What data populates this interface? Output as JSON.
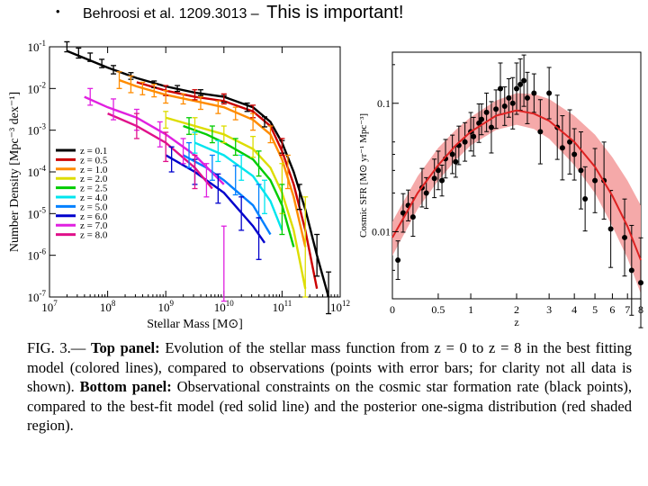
{
  "slide": {
    "bullet": "•",
    "title_ref": "Behroosi et al. 1209.3013 –",
    "title_emphasis": "This is important!"
  },
  "caption": {
    "fig": "FIG. 3.—",
    "top_label": "Top panel:",
    "top_text": " Evolution of the stellar mass function from z = 0 to z = 8 in the best fitting model (colored lines), compared to observations (points with error bars; for clarity not all data is shown). ",
    "bottom_label": "Bottom panel:",
    "bottom_text": " Observational constraints on the cosmic star formation rate (black points), compared to the best-fit model (red solid line) and the posterior one-sigma distribution (red shaded region)."
  },
  "chart_data": [
    {
      "type": "line",
      "title": "",
      "xlabel": "Stellar Mass [M⊙]",
      "ylabel": "Number Density [Mpc⁻³ dex⁻¹]",
      "x_scale": "log",
      "y_scale": "log",
      "xlim": [
        10000000.0,
        1000000000000.0
      ],
      "ylim": [
        1e-07,
        0.1
      ],
      "xticks": [
        {
          "v": 7,
          "label": "10",
          "exp": "7"
        },
        {
          "v": 8,
          "label": "10",
          "exp": "8"
        },
        {
          "v": 9,
          "label": "10",
          "exp": "9"
        },
        {
          "v": 10,
          "label": "10",
          "exp": "10"
        },
        {
          "v": 11,
          "label": "10",
          "exp": "11"
        },
        {
          "v": 12,
          "label": "10",
          "exp": "12"
        }
      ],
      "yticks": [
        {
          "v": -1,
          "label": "10",
          "exp": "-1"
        },
        {
          "v": -2,
          "label": "10",
          "exp": "-2"
        },
        {
          "v": -3,
          "label": "10",
          "exp": "-3"
        },
        {
          "v": -4,
          "label": "10",
          "exp": "-4"
        },
        {
          "v": -5,
          "label": "10",
          "exp": "-5"
        },
        {
          "v": -6,
          "label": "10",
          "exp": "-6"
        },
        {
          "v": -7,
          "label": "10",
          "exp": "-7"
        }
      ],
      "legend_position": "bottom-left",
      "series": [
        {
          "name": "z = 0.1",
          "color": "#000000",
          "x": [
            7.3,
            8.0,
            8.5,
            9.0,
            9.5,
            10.0,
            10.5,
            10.8,
            11.0,
            11.2,
            11.4,
            11.6,
            11.8
          ],
          "y": [
            -1.1,
            -1.5,
            -1.75,
            -1.95,
            -2.1,
            -2.2,
            -2.45,
            -2.8,
            -3.3,
            -4.0,
            -4.9,
            -6.0,
            -7.0
          ]
        },
        {
          "name": "z = 0.5",
          "color": "#cc0000",
          "x": [
            8.5,
            9.0,
            9.5,
            10.0,
            10.5,
            10.8,
            11.0,
            11.2,
            11.4,
            11.6
          ],
          "y": [
            -1.85,
            -2.05,
            -2.2,
            -2.3,
            -2.55,
            -2.9,
            -3.5,
            -4.3,
            -5.4,
            -6.8
          ]
        },
        {
          "name": "z = 1.0",
          "color": "#ff8c00",
          "x": [
            8.2,
            8.5,
            9.0,
            9.5,
            10.0,
            10.5,
            10.8,
            11.0,
            11.2,
            11.4
          ],
          "y": [
            -1.8,
            -1.95,
            -2.15,
            -2.3,
            -2.45,
            -2.75,
            -3.1,
            -3.7,
            -4.6,
            -5.8
          ]
        },
        {
          "name": "z = 2.0",
          "color": "#dddd00",
          "x": [
            9.0,
            9.5,
            10.0,
            10.5,
            10.8,
            11.0,
            11.2,
            11.4
          ],
          "y": [
            -2.7,
            -2.9,
            -3.1,
            -3.45,
            -3.9,
            -4.5,
            -5.4,
            -6.8
          ]
        },
        {
          "name": "z = 2.5",
          "color": "#00cc00",
          "x": [
            9.3,
            9.7,
            10.0,
            10.5,
            10.8,
            11.0,
            11.2
          ],
          "y": [
            -2.9,
            -3.1,
            -3.3,
            -3.7,
            -4.2,
            -4.8,
            -5.8
          ]
        },
        {
          "name": "z = 4.0",
          "color": "#00e5ee",
          "x": [
            9.5,
            10.0,
            10.5,
            10.8,
            11.0
          ],
          "y": [
            -3.3,
            -3.6,
            -4.1,
            -4.7,
            -5.4
          ]
        },
        {
          "name": "z = 5.0",
          "color": "#0080ff",
          "x": [
            9.3,
            9.7,
            10.0,
            10.5,
            10.8
          ],
          "y": [
            -3.6,
            -3.9,
            -4.2,
            -4.8,
            -5.5
          ]
        },
        {
          "name": "z = 6.0",
          "color": "#0000cc",
          "x": [
            9.0,
            9.5,
            10.0,
            10.5,
            10.7
          ],
          "y": [
            -3.6,
            -4.0,
            -4.5,
            -5.3,
            -5.7
          ]
        },
        {
          "name": "z = 7.0",
          "color": "#e020e0",
          "x": [
            7.6,
            8.0,
            8.5,
            9.0,
            9.5,
            10.0
          ],
          "y": [
            -2.2,
            -2.45,
            -2.7,
            -3.1,
            -3.6,
            -4.3
          ]
        },
        {
          "name": "z = 8.0",
          "color": "#e0108a",
          "x": [
            8.0,
            8.5,
            9.0,
            9.5,
            9.8
          ],
          "y": [
            -2.6,
            -2.9,
            -3.3,
            -3.9,
            -4.4
          ]
        }
      ],
      "observations": [
        {
          "color": "#000000",
          "x": [
            7.3,
            7.5,
            7.7,
            7.9,
            8.1,
            8.4,
            8.8,
            9.2,
            9.6,
            10.0,
            10.4,
            10.7,
            11.0,
            11.3,
            11.6,
            11.8
          ],
          "y": [
            -1.0,
            -1.15,
            -1.25,
            -1.4,
            -1.55,
            -1.7,
            -1.9,
            -2.0,
            -2.1,
            -2.25,
            -2.45,
            -2.8,
            -3.4,
            -4.6,
            -6.0,
            -6.9
          ],
          "err": [
            0.12,
            0.12,
            0.1,
            0.1,
            0.1,
            0.08,
            0.08,
            0.07,
            0.07,
            0.08,
            0.1,
            0.12,
            0.15,
            0.3,
            0.5,
            0.5
          ]
        },
        {
          "color": "#cc0000",
          "x": [
            9.0,
            9.5,
            10.0,
            10.5,
            11.0
          ],
          "y": [
            -2.05,
            -2.15,
            -2.25,
            -2.55,
            -3.4
          ],
          "err": [
            0.12,
            0.12,
            0.12,
            0.15,
            0.2
          ]
        },
        {
          "color": "#ff8c00",
          "x": [
            8.2,
            8.4,
            8.6,
            8.8,
            9.0,
            9.3,
            9.6,
            9.9,
            10.2,
            10.5,
            10.8,
            11.1
          ],
          "y": [
            -1.8,
            -1.9,
            -2.0,
            -2.05,
            -2.2,
            -2.25,
            -2.35,
            -2.45,
            -2.6,
            -2.8,
            -3.1,
            -4.0
          ],
          "err": [
            0.2,
            0.2,
            0.15,
            0.15,
            0.15,
            0.12,
            0.15,
            0.15,
            0.15,
            0.2,
            0.2,
            0.4
          ]
        },
        {
          "color": "#dddd00",
          "x": [
            9.0,
            9.5,
            10.0,
            10.5,
            11.0,
            11.4
          ],
          "y": [
            -2.75,
            -2.9,
            -3.1,
            -3.4,
            -4.4,
            -5.8
          ],
          "err": [
            0.2,
            0.2,
            0.2,
            0.25,
            0.6,
            1.2
          ]
        },
        {
          "color": "#00cc00",
          "x": [
            9.4,
            9.8,
            10.2,
            10.6,
            11.0
          ],
          "y": [
            -2.9,
            -3.1,
            -3.4,
            -3.8,
            -4.9
          ],
          "err": [
            0.2,
            0.2,
            0.2,
            0.3,
            0.6
          ]
        },
        {
          "color": "#00e5ee",
          "x": [
            9.5,
            9.9,
            10.3,
            10.7
          ],
          "y": [
            -3.3,
            -3.5,
            -3.9,
            -4.6
          ],
          "err": [
            0.25,
            0.25,
            0.3,
            0.4
          ]
        },
        {
          "color": "#0080ff",
          "x": [
            9.4,
            9.8,
            10.2,
            10.6
          ],
          "y": [
            -3.6,
            -3.9,
            -4.2,
            -4.7
          ],
          "err": [
            0.3,
            0.3,
            0.35,
            0.4
          ]
        },
        {
          "color": "#0000cc",
          "x": [
            9.1,
            9.5,
            9.9,
            10.3,
            10.6
          ],
          "y": [
            -3.7,
            -4.0,
            -4.4,
            -5.0,
            -5.6
          ],
          "err": [
            0.3,
            0.3,
            0.35,
            0.4,
            0.5
          ]
        },
        {
          "color": "#e020e0",
          "x": [
            7.7,
            8.1,
            8.5,
            8.9,
            9.3,
            9.7,
            10.0
          ],
          "y": [
            -2.2,
            -2.5,
            -2.75,
            -3.1,
            -3.5,
            -4.2,
            -6.2
          ],
          "err": [
            0.2,
            0.25,
            0.25,
            0.3,
            0.3,
            0.4,
            0.9
          ]
        },
        {
          "color": "#e0108a",
          "x": [
            8.5,
            9.0,
            9.5
          ],
          "y": [
            -2.9,
            -3.4,
            -4.0
          ],
          "err": [
            0.3,
            0.35,
            0.4
          ]
        }
      ]
    },
    {
      "type": "scatter",
      "title": "",
      "xlabel": "z",
      "ylabel": "Cosmic SFR [M⊙ yr⁻¹ Mpc⁻³]",
      "x_scale": "log(1+z)",
      "y_scale": "log",
      "xlim": [
        0,
        8
      ],
      "ylim": [
        0.003,
        0.25
      ],
      "xticks": [
        0,
        0.5,
        1,
        2,
        3,
        4,
        5,
        6,
        7,
        8
      ],
      "yticks": [
        {
          "v": 0.1,
          "label": "0.1"
        },
        {
          "v": 0.01,
          "label": "0.01"
        }
      ],
      "model": {
        "color": "#dd2222",
        "band_color": "#f4a0a0",
        "x": [
          0,
          0.25,
          0.5,
          0.75,
          1,
          1.5,
          2,
          2.5,
          3,
          4,
          5,
          6,
          7,
          8
        ],
        "y": [
          0.009,
          0.02,
          0.033,
          0.047,
          0.06,
          0.08,
          0.088,
          0.083,
          0.073,
          0.05,
          0.032,
          0.019,
          0.011,
          0.006
        ],
        "lower": [
          0.0065,
          0.015,
          0.025,
          0.036,
          0.047,
          0.062,
          0.068,
          0.063,
          0.053,
          0.033,
          0.02,
          0.011,
          0.0062,
          0.0033
        ],
        "upper": [
          0.012,
          0.027,
          0.045,
          0.062,
          0.078,
          0.105,
          0.12,
          0.118,
          0.108,
          0.08,
          0.057,
          0.038,
          0.025,
          0.016
        ]
      },
      "observations": {
        "color": "#000000",
        "x": [
          0.05,
          0.1,
          0.15,
          0.2,
          0.3,
          0.35,
          0.45,
          0.5,
          0.55,
          0.6,
          0.7,
          0.75,
          0.8,
          0.9,
          1.0,
          1.05,
          1.15,
          1.2,
          1.3,
          1.4,
          1.5,
          1.6,
          1.7,
          1.8,
          1.9,
          2.0,
          2.1,
          2.2,
          2.3,
          2.5,
          2.7,
          3.0,
          3.3,
          3.5,
          3.8,
          4.0,
          4.3,
          4.5,
          5.0,
          5.5,
          5.9,
          6.8,
          7.3,
          8.0
        ],
        "y": [
          0.006,
          0.014,
          0.016,
          0.013,
          0.022,
          0.02,
          0.026,
          0.03,
          0.025,
          0.037,
          0.04,
          0.035,
          0.047,
          0.05,
          0.06,
          0.055,
          0.07,
          0.075,
          0.085,
          0.065,
          0.09,
          0.13,
          0.095,
          0.11,
          0.1,
          0.13,
          0.14,
          0.15,
          0.11,
          0.12,
          0.06,
          0.12,
          0.065,
          0.045,
          0.05,
          0.04,
          0.03,
          0.018,
          0.025,
          0.025,
          0.0105,
          0.009,
          0.005,
          0.004
        ],
        "err": [
          0.15,
          0.15,
          0.12,
          0.15,
          0.15,
          0.12,
          0.15,
          0.15,
          0.12,
          0.15,
          0.15,
          0.12,
          0.15,
          0.15,
          0.15,
          0.15,
          0.15,
          0.12,
          0.15,
          0.2,
          0.15,
          0.2,
          0.15,
          0.15,
          0.2,
          0.2,
          0.2,
          0.2,
          0.2,
          0.15,
          0.25,
          0.2,
          0.25,
          0.25,
          0.25,
          0.2,
          0.3,
          0.25,
          0.25,
          0.3,
          0.3,
          0.3,
          0.35,
          0.35
        ]
      }
    }
  ]
}
